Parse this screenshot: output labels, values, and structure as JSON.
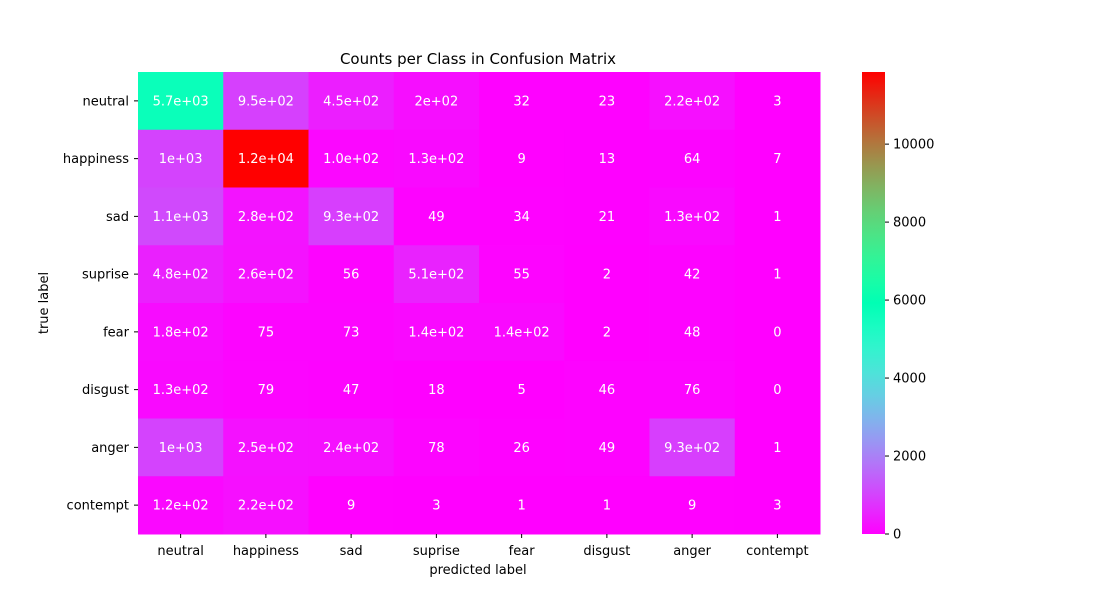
{
  "chart_data": {
    "type": "heatmap",
    "title": "Counts per Class in Confusion Matrix",
    "xlabel": "predicted label",
    "ylabel": "true label",
    "x_categories": [
      "neutral",
      "happiness",
      "sad",
      "suprise",
      "fear",
      "disgust",
      "anger",
      "contempt"
    ],
    "y_categories": [
      "neutral",
      "happiness",
      "sad",
      "suprise",
      "fear",
      "disgust",
      "anger",
      "contempt"
    ],
    "values": [
      [
        5700,
        950,
        450,
        200,
        32,
        23,
        220,
        3
      ],
      [
        1000,
        12000,
        100,
        130,
        9,
        13,
        64,
        7
      ],
      [
        1100,
        280,
        930,
        49,
        34,
        21,
        130,
        1
      ],
      [
        480,
        260,
        56,
        510,
        55,
        2,
        42,
        1
      ],
      [
        180,
        75,
        73,
        140,
        140,
        2,
        48,
        0
      ],
      [
        130,
        79,
        47,
        18,
        5,
        46,
        76,
        0
      ],
      [
        1000,
        250,
        240,
        78,
        26,
        49,
        930,
        1
      ],
      [
        120,
        220,
        9,
        3,
        1,
        1,
        9,
        3
      ]
    ],
    "annotations": [
      [
        "5.7e+03",
        "9.5e+02",
        "4.5e+02",
        "2e+02",
        "32",
        "23",
        "2.2e+02",
        "3"
      ],
      [
        "1e+03",
        "1.2e+04",
        "1.0e+02",
        "1.3e+02",
        "9",
        "13",
        "64",
        "7"
      ],
      [
        "1.1e+03",
        "2.8e+02",
        "9.3e+02",
        "49",
        "34",
        "21",
        "1.3e+02",
        "1"
      ],
      [
        "4.8e+02",
        "2.6e+02",
        "56",
        "5.1e+02",
        "55",
        "2",
        "42",
        "1"
      ],
      [
        "1.8e+02",
        "75",
        "73",
        "1.4e+02",
        "1.4e+02",
        "2",
        "48",
        "0"
      ],
      [
        "1.3e+02",
        "79",
        "47",
        "18",
        "5",
        "46",
        "76",
        "0"
      ],
      [
        "1e+03",
        "2.5e+02",
        "2.4e+02",
        "78",
        "26",
        "49",
        "9.3e+02",
        "1"
      ],
      [
        "1.2e+02",
        "2.2e+02",
        "9",
        "3",
        "1",
        "1",
        "9",
        "3"
      ]
    ],
    "colormap": "rainbow",
    "vmin": 0,
    "vmax": 11850,
    "colorbar_ticks": [
      0,
      2000,
      4000,
      6000,
      8000,
      10000
    ]
  }
}
